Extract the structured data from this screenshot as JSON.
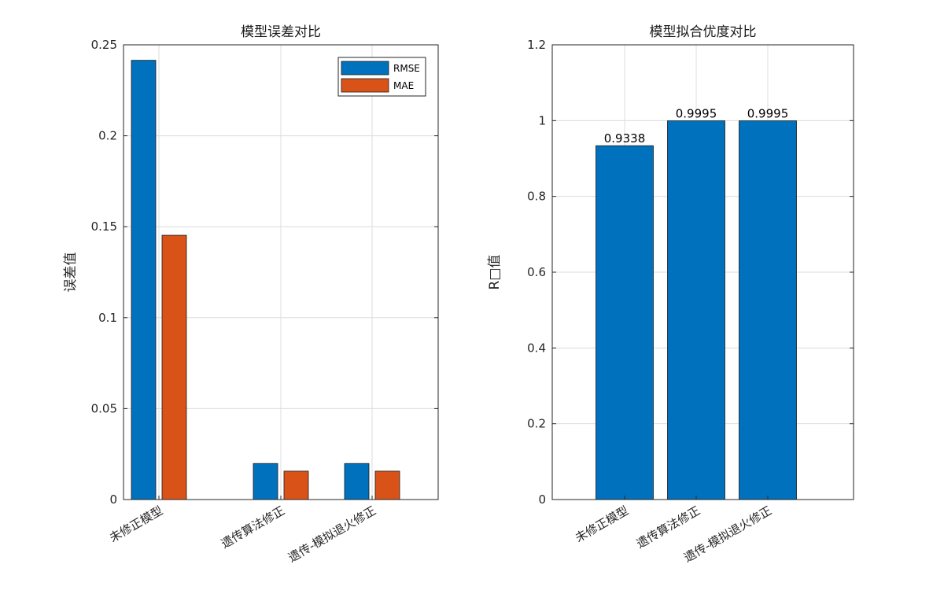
{
  "chart_data": [
    {
      "type": "bar",
      "title": "模型误差对比",
      "ylabel": "误差值",
      "categories": [
        "未修正模型",
        "遗传算法修正",
        "遗传-模拟退火修正"
      ],
      "ylim": [
        0,
        0.25
      ],
      "yticks": [
        0,
        0.05,
        0.1,
        0.15,
        0.2,
        0.25
      ],
      "ytick_labels": [
        "0",
        "0.05",
        "0.1",
        "0.15",
        "0.2",
        "0.25"
      ],
      "grid": true,
      "legend_position": "top-right",
      "series": [
        {
          "name": "RMSE",
          "color": "#0072BD",
          "values": [
            0.2415,
            0.0198,
            0.0198
          ]
        },
        {
          "name": "MAE",
          "color": "#D95319",
          "values": [
            0.1453,
            0.0156,
            0.0156
          ]
        }
      ]
    },
    {
      "type": "bar",
      "title": "模型拟合优度对比",
      "ylabel": "R□值",
      "categories": [
        "未修正模型",
        "遗传算法修正",
        "遗传-模拟退火修正"
      ],
      "ylim": [
        0,
        1.2
      ],
      "yticks": [
        0,
        0.2,
        0.4,
        0.6,
        0.8,
        1,
        1.2
      ],
      "ytick_labels": [
        "0",
        "0.2",
        "0.4",
        "0.6",
        "0.8",
        "1",
        "1.2"
      ],
      "grid": true,
      "series": [
        {
          "color": "#0072BD",
          "values": [
            0.9338,
            0.9995,
            0.9995
          ]
        }
      ],
      "data_labels": [
        "0.9338",
        "0.9995",
        "0.9995"
      ]
    }
  ]
}
